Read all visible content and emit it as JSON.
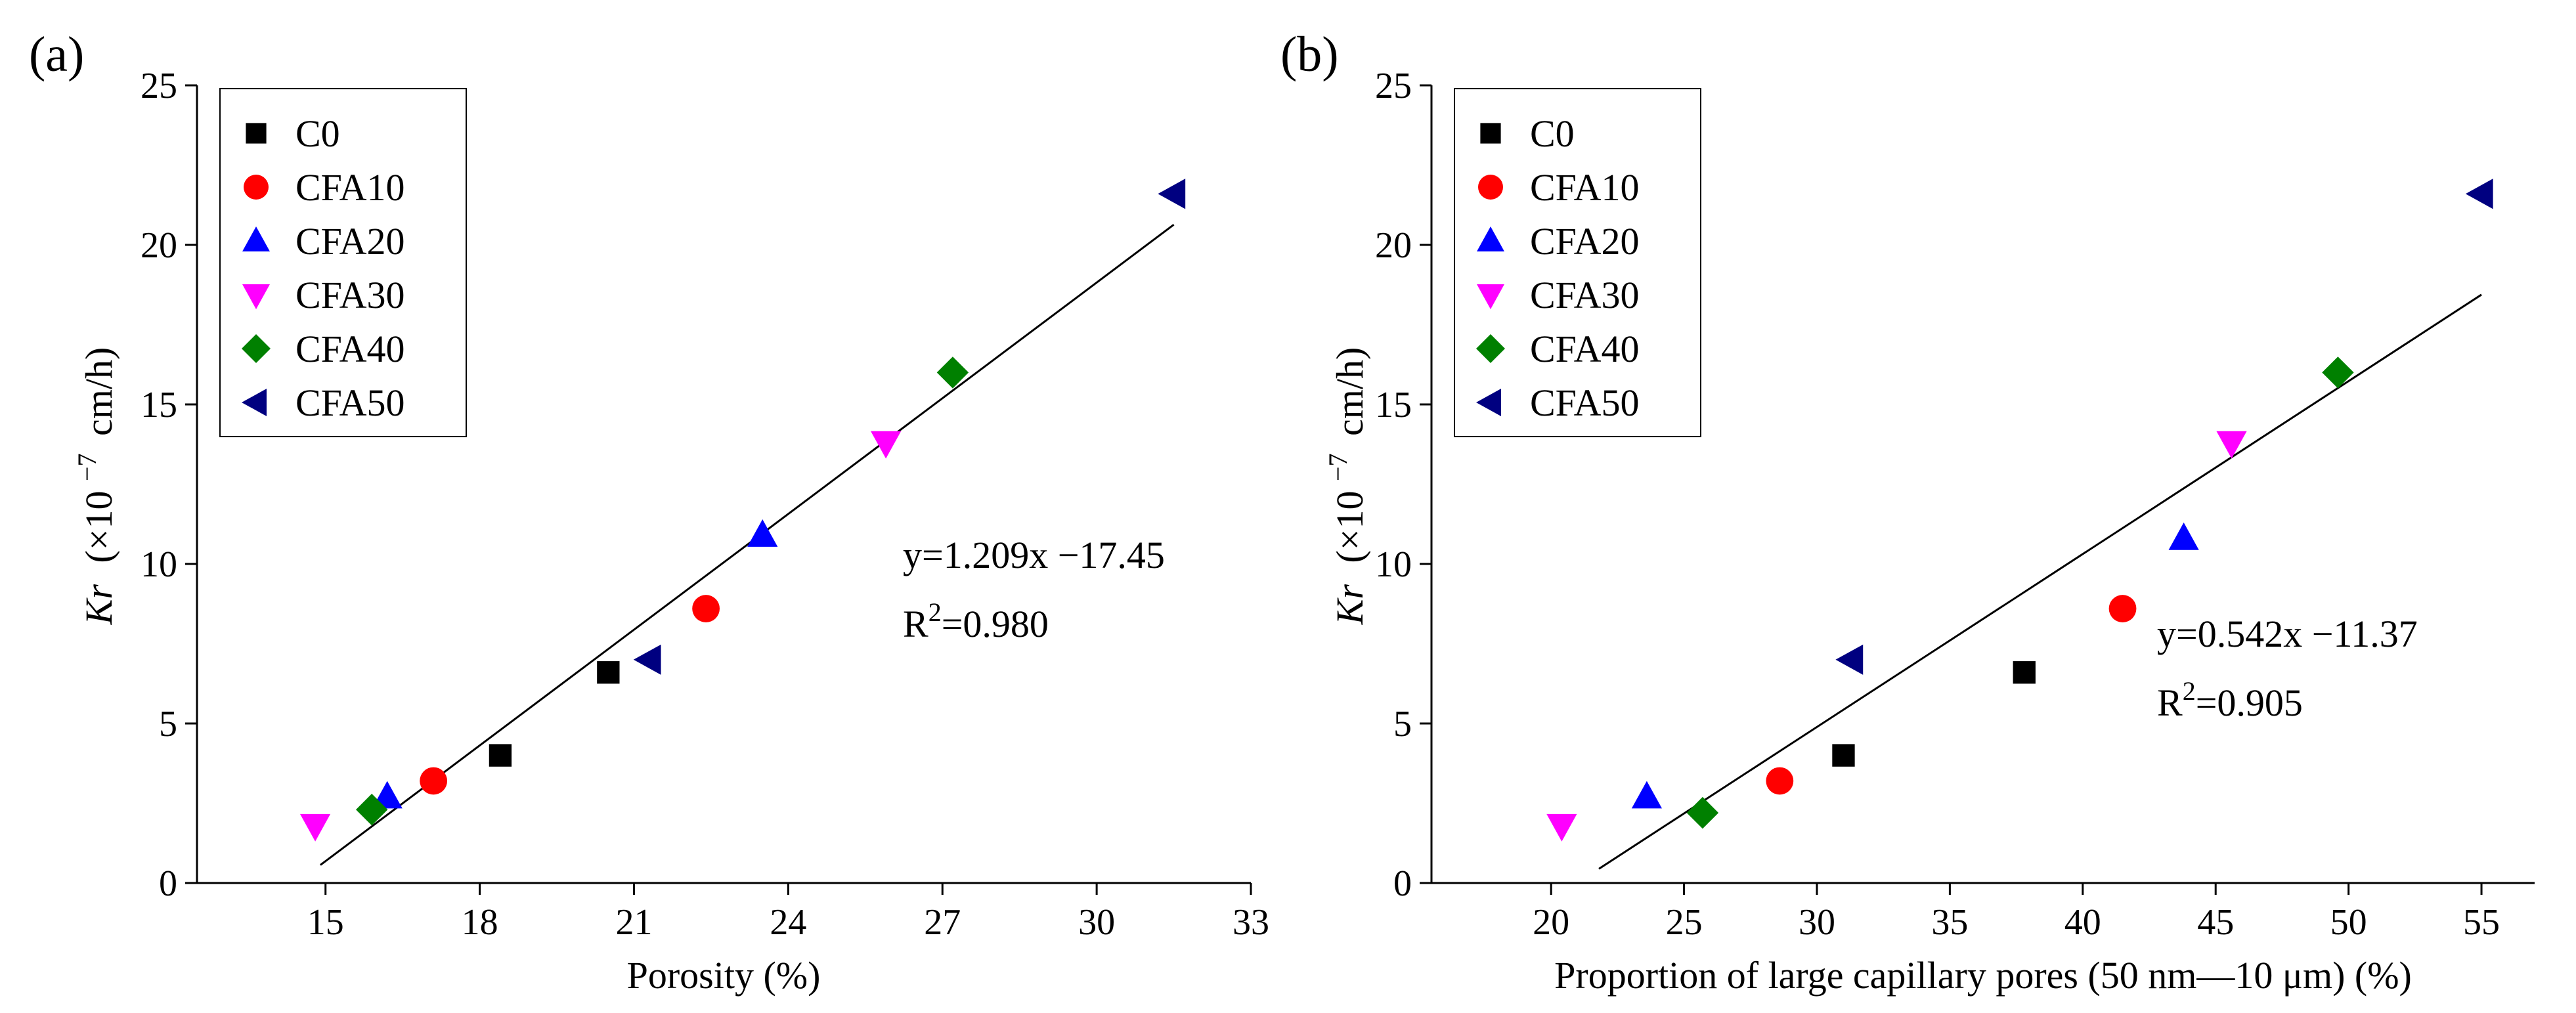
{
  "chart_data": [
    {
      "type": "scatter",
      "panel_label": "(a)",
      "xlabel": "Porosity (%)",
      "ylabel_main": "Kr",
      "ylabel_unit": "(×10",
      "ylabel_exp": "−7",
      "ylabel_tail": "cm/h)",
      "xlim": [
        12.5,
        33
      ],
      "ylim": [
        0,
        25
      ],
      "xticks": [
        15,
        18,
        21,
        24,
        27,
        30,
        33
      ],
      "yticks": [
        0,
        5,
        10,
        15,
        20,
        25
      ],
      "series": [
        {
          "name": "C0",
          "marker": "square",
          "color": "#000000",
          "x": [
            18.4,
            20.5
          ],
          "y": [
            4.0,
            6.6
          ]
        },
        {
          "name": "CFA10",
          "marker": "circle",
          "color": "#ff0000",
          "x": [
            17.1,
            22.4
          ],
          "y": [
            3.2,
            8.6
          ]
        },
        {
          "name": "CFA20",
          "marker": "triangle-up",
          "color": "#0000ff",
          "x": [
            16.2,
            23.5
          ],
          "y": [
            2.7,
            10.9
          ]
        },
        {
          "name": "CFA30",
          "marker": "triangle-down",
          "color": "#ff00ff",
          "x": [
            14.8,
            25.9
          ],
          "y": [
            1.8,
            13.8
          ]
        },
        {
          "name": "CFA40",
          "marker": "diamond",
          "color": "#008000",
          "x": [
            15.9,
            27.2
          ],
          "y": [
            2.3,
            16.0
          ]
        },
        {
          "name": "CFA50",
          "marker": "triangle-left",
          "color": "#000080",
          "x": [
            21.3,
            31.5
          ],
          "y": [
            7.0,
            21.6
          ]
        }
      ],
      "fit": {
        "slope": 1.209,
        "intercept": -17.45,
        "x_range": [
          14.9,
          31.5
        ]
      },
      "equation": "y=1.209x −17.45",
      "r2_prefix": "R",
      "r2_exp": "2",
      "r2_value": "=0.980",
      "legend_position": "top-left"
    },
    {
      "type": "scatter",
      "panel_label": "(b)",
      "xlabel": "Proportion of large capillary pores (50 nm—10 μm) (%)",
      "ylabel_main": "Kr",
      "ylabel_unit": "(×10",
      "ylabel_exp": "−7",
      "ylabel_tail": "cm/h)",
      "xlim": [
        15.5,
        57
      ],
      "ylim": [
        0,
        25
      ],
      "xticks": [
        20,
        25,
        30,
        35,
        40,
        45,
        50,
        55
      ],
      "yticks": [
        0,
        5,
        10,
        15,
        20,
        25
      ],
      "series": [
        {
          "name": "C0",
          "marker": "square",
          "color": "#000000",
          "x": [
            31.0,
            37.8
          ],
          "y": [
            4.0,
            6.6
          ]
        },
        {
          "name": "CFA10",
          "marker": "circle",
          "color": "#ff0000",
          "x": [
            28.6,
            41.5
          ],
          "y": [
            3.2,
            8.6
          ]
        },
        {
          "name": "CFA20",
          "marker": "triangle-up",
          "color": "#0000ff",
          "x": [
            23.6,
            43.8
          ],
          "y": [
            2.7,
            10.8
          ]
        },
        {
          "name": "CFA30",
          "marker": "triangle-down",
          "color": "#ff00ff",
          "x": [
            20.4,
            45.6
          ],
          "y": [
            1.8,
            13.8
          ]
        },
        {
          "name": "CFA40",
          "marker": "diamond",
          "color": "#008000",
          "x": [
            25.7,
            49.6
          ],
          "y": [
            2.2,
            16.0
          ]
        },
        {
          "name": "CFA50",
          "marker": "triangle-left",
          "color": "#000080",
          "x": [
            31.3,
            55.0
          ],
          "y": [
            7.0,
            21.6
          ]
        }
      ],
      "fit": {
        "slope": 0.542,
        "intercept": -11.37,
        "x_range": [
          21.8,
          55.0
        ]
      },
      "equation": "y=0.542x −11.37",
      "r2_prefix": "R",
      "r2_exp": "2",
      "r2_value": "=0.905",
      "legend_position": "top-left"
    }
  ]
}
